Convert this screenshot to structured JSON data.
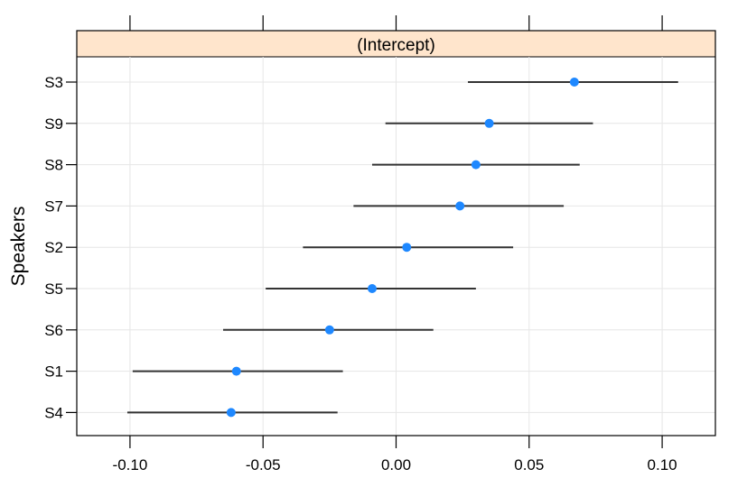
{
  "chart_data": {
    "type": "dotplot",
    "strip_label": "(Intercept)",
    "ylabel": "Speakers",
    "xlabel": "",
    "xlim": [
      -0.12,
      0.12
    ],
    "x_ticks": [
      -0.1,
      -0.05,
      0.0,
      0.05,
      0.1
    ],
    "x_tick_labels": [
      "-0.10",
      "-0.05",
      "0.00",
      "0.05",
      "0.10"
    ],
    "grid": true,
    "point_color": "#1E88FF",
    "line_color": "#333333",
    "strip_color": "#FFE5CC",
    "categories": [
      "S3",
      "S9",
      "S8",
      "S7",
      "S2",
      "S5",
      "S6",
      "S1",
      "S4"
    ],
    "estimates": [
      0.067,
      0.035,
      0.03,
      0.024,
      0.004,
      -0.009,
      -0.025,
      -0.06,
      -0.062
    ],
    "lower": [
      0.027,
      -0.004,
      -0.009,
      -0.016,
      -0.035,
      -0.049,
      -0.065,
      -0.099,
      -0.101
    ],
    "upper": [
      0.106,
      0.074,
      0.069,
      0.063,
      0.044,
      0.03,
      0.014,
      -0.02,
      -0.022
    ]
  }
}
